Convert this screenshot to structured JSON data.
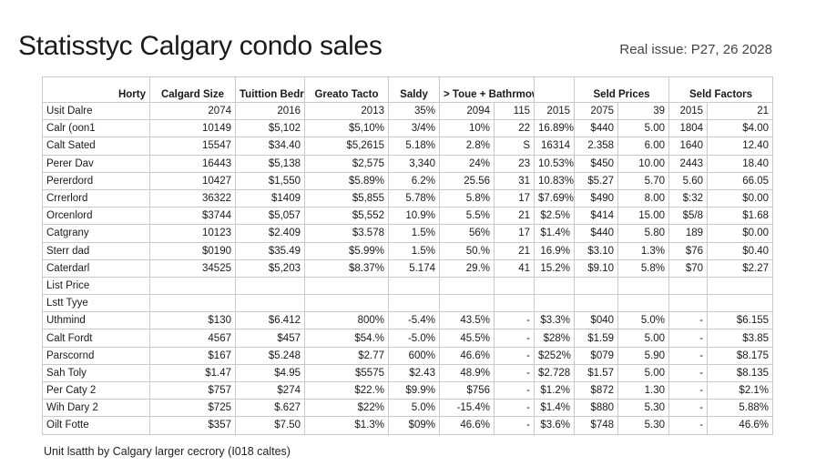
{
  "document": {
    "title": "Statisstyc Calgary condo sales",
    "issue": "Real issue: P27, 26 2028",
    "caption": "Unit lsatth by Calgary larger cecrory (I018 caltes)"
  },
  "table": {
    "headers": [
      "Horty",
      "Calgard Size",
      "Tuittion Bedreoms",
      "Greato Tacto",
      "Saldy",
      "> Toue + Bathrmow",
      "",
      "Seld Prices",
      "",
      "Seld Factors",
      ""
    ],
    "rows": [
      [
        "Usit Dalre",
        "2074",
        "2016",
        "2013",
        "35%",
        "2094",
        "115",
        "2015",
        "2075",
        "39",
        "2015",
        "21"
      ],
      [
        "Calr (oon1",
        "10149",
        "$5,102",
        "$5,10%",
        "3/4%",
        "10%",
        "22",
        "16.89%",
        "$440",
        "5.00",
        "1804",
        "$4.00"
      ],
      [
        "Calt Sated",
        "15547",
        "$34.40",
        "$5,2615",
        "5.18%",
        "2.8%",
        "S",
        "16314",
        "2.358",
        "6.00",
        "1640",
        "12.40"
      ],
      [
        "Perer Dav",
        "16443",
        "$5,138",
        "$2,575",
        "3,340",
        "24%",
        "23",
        "10.53%",
        "$450",
        "10.00",
        "2443",
        "18.40"
      ],
      [
        "Pererdord",
        "10427",
        "$1,550",
        "$5.89%",
        "6.2%",
        "25.56",
        "31",
        "10.83%",
        "$5.27",
        "5.70",
        "5.60",
        "66.05"
      ],
      [
        "Crrerlord",
        "36322",
        "$1409",
        "$5,855",
        "5.78%",
        "5.8%",
        "17",
        "$7.69%",
        "$490",
        "8.00",
        "$:32",
        "$0.00"
      ],
      [
        "Orcenlord",
        "$3744",
        "$5,057",
        "$5,552",
        "10.9%",
        "5.5%",
        "21",
        "$2.5%",
        "$414",
        "15.00",
        "$5/8",
        "$1.68"
      ],
      [
        "Catgrany",
        "10123",
        "$2.409",
        "$3.578",
        "1.5%",
        "56%",
        "17",
        "$1.4%",
        "$440",
        "5.80",
        "189",
        "$0.00"
      ],
      [
        "Sterr dad",
        "$0190",
        "$35.49",
        "$5.99%",
        "1.5%",
        "50.%",
        "21",
        "16.9%",
        "$3.10",
        "1.3%",
        "$76",
        "$0.40"
      ],
      [
        "Caterdarl",
        "34525",
        "$5,203",
        "$8.37%",
        "5.174",
        "29.%",
        "41",
        "15.2%",
        "$9.10",
        "5.8%",
        "$70",
        "$2.27"
      ],
      [
        "List Price",
        "",
        "",
        "",
        "",
        "",
        "",
        "",
        "",
        "",
        "",
        ""
      ],
      [
        "Lstt Tyye",
        "",
        "",
        "",
        "",
        "",
        "",
        "",
        "",
        "",
        "",
        ""
      ],
      [
        "Uthmind",
        "$130",
        "$6.412",
        "800%",
        "-5.4%",
        "43.5%",
        "-",
        "$3.3%",
        "$040",
        "5.0%",
        "-",
        "$6.155"
      ],
      [
        "Calt Fordt",
        "4567",
        "$457",
        "$54.%",
        "-5.0%",
        "45.5%",
        "-",
        "$28%",
        "$1.59",
        "5.00",
        "-",
        "$3.85"
      ],
      [
        "Parscornd",
        "$167",
        "$5.248",
        "$2.77",
        "600%",
        "46.6%",
        "-",
        "$252%",
        "$079",
        "5.90",
        "-",
        "$8.175"
      ],
      [
        "Sah Toly",
        "$1.47",
        "$4.95",
        "$5575",
        "$2.43",
        "48.9%",
        "-",
        "$2.728",
        "$1.57",
        "5.00",
        "-",
        "$8.135"
      ],
      [
        "Per Caty 2",
        "$757",
        "$274",
        "$22.%",
        "$9.9%",
        "$756",
        "-",
        "$1.2%",
        "$872",
        "1.30",
        "-",
        "$2.1%"
      ],
      [
        "Wih Dary 2",
        "$725",
        "$.627",
        "$22%",
        "5.0%",
        "-15.4%",
        "-",
        "$1.4%",
        "$880",
        "5.30",
        "-",
        "5.88%"
      ],
      [
        "Oilt Fotte",
        "$357",
        "$7.50",
        "$1.3%",
        "$09%",
        "46.6%",
        "-",
        "$3.6%",
        "$748",
        "5.30",
        "-",
        "46.6%"
      ]
    ]
  }
}
